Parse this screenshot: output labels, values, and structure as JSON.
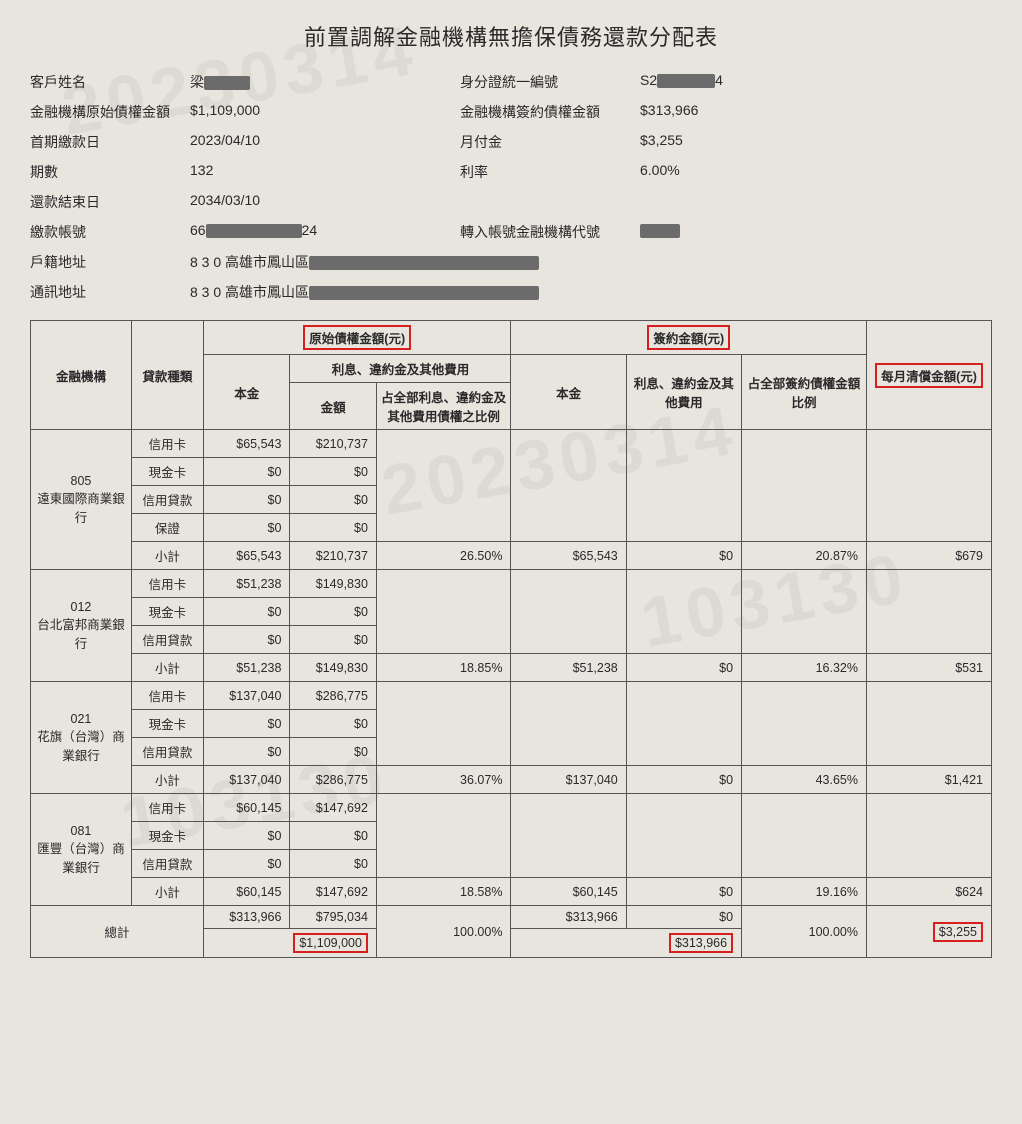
{
  "title": "前置調解金融機構無擔保債務還款分配表",
  "header": {
    "left_labels": [
      "客戶姓名",
      "金融機構原始債權金額",
      "首期繳款日",
      "期數",
      "還款結束日",
      "繳款帳號",
      "戶籍地址",
      "通訊地址"
    ],
    "left_values": [
      "梁",
      "$1,109,000",
      "2023/04/10",
      "132",
      "2034/03/10",
      "66                24",
      "8 3 0 高雄市鳳山區",
      "8 3 0 高雄市鳳山區"
    ],
    "right_labels": [
      "身分證統一編號",
      "金融機構簽約債權金額",
      "月付金",
      "利率",
      "轉入帳號金融機構代號"
    ],
    "right_values": [
      "S2           4",
      "$313,966",
      "$3,255",
      "6.00%",
      ""
    ]
  },
  "table": {
    "head": {
      "orig_amount": "原始債權金額(元)",
      "sign_amount": "簽約金額(元)",
      "monthly": "每月清償金額(元)",
      "bank": "金融機構",
      "loan_type": "貸款種類",
      "principal": "本金",
      "interest_group": "利息、違約金及其他費用",
      "amount": "金額",
      "ratio_orig": "占全部利息、違約金及其他費用債權之比例",
      "principal2": "本金",
      "interest2": "利息、違約金及其他費用",
      "ratio_sign": "占全部簽約債權金額比例"
    },
    "loan_types": [
      "信用卡",
      "現金卡",
      "信用貸款",
      "保證",
      "小計"
    ],
    "loan_types_nobond": [
      "信用卡",
      "現金卡",
      "信用貸款",
      "小計"
    ],
    "banks": [
      {
        "code": "805",
        "name": "遠東國際商業銀行",
        "rows": [
          {
            "type": "信用卡",
            "p1": "$65,543",
            "p2": "$210,737"
          },
          {
            "type": "現金卡",
            "p1": "$0",
            "p2": "$0"
          },
          {
            "type": "信用貸款",
            "p1": "$0",
            "p2": "$0"
          },
          {
            "type": "保證",
            "p1": "$0",
            "p2": "$0"
          },
          {
            "type": "小計",
            "p1": "$65,543",
            "p2": "$210,737",
            "r1": "26.50%",
            "p3": "$65,543",
            "p4": "$0",
            "r2": "20.87%",
            "m": "$679"
          }
        ]
      },
      {
        "code": "012",
        "name": "台北富邦商業銀行",
        "rows": [
          {
            "type": "信用卡",
            "p1": "$51,238",
            "p2": "$149,830"
          },
          {
            "type": "現金卡",
            "p1": "$0",
            "p2": "$0"
          },
          {
            "type": "信用貸款",
            "p1": "$0",
            "p2": "$0"
          },
          {
            "type": "小計",
            "p1": "$51,238",
            "p2": "$149,830",
            "r1": "18.85%",
            "p3": "$51,238",
            "p4": "$0",
            "r2": "16.32%",
            "m": "$531"
          }
        ]
      },
      {
        "code": "021",
        "name": "花旗（台灣）商業銀行",
        "rows": [
          {
            "type": "信用卡",
            "p1": "$137,040",
            "p2": "$286,775"
          },
          {
            "type": "現金卡",
            "p1": "$0",
            "p2": "$0"
          },
          {
            "type": "信用貸款",
            "p1": "$0",
            "p2": "$0"
          },
          {
            "type": "小計",
            "p1": "$137,040",
            "p2": "$286,775",
            "r1": "36.07%",
            "p3": "$137,040",
            "p4": "$0",
            "r2": "43.65%",
            "m": "$1,421"
          }
        ]
      },
      {
        "code": "081",
        "name": "匯豐（台灣）商業銀行",
        "rows": [
          {
            "type": "信用卡",
            "p1": "$60,145",
            "p2": "$147,692"
          },
          {
            "type": "現金卡",
            "p1": "$0",
            "p2": "$0"
          },
          {
            "type": "信用貸款",
            "p1": "$0",
            "p2": "$0"
          },
          {
            "type": "小計",
            "p1": "$60,145",
            "p2": "$147,692",
            "r1": "18.58%",
            "p3": "$60,145",
            "p4": "$0",
            "r2": "19.16%",
            "m": "$624"
          }
        ]
      }
    ],
    "totals": {
      "label": "總計",
      "sub_p1": "$313,966",
      "sub_p2": "$795,034",
      "grand_orig": "$1,109,000",
      "ratio1": "100.00%",
      "sub_p3": "$313,966",
      "sub_p4": "$0",
      "grand_sign": "$313,966",
      "ratio2": "100.00%",
      "monthly": "$3,255"
    }
  },
  "style": {
    "highlight_border": "#d62020",
    "border": "#555555",
    "bg": "#e8e4de",
    "text": "#2a2a2a",
    "redact": "#6b6b6b"
  }
}
